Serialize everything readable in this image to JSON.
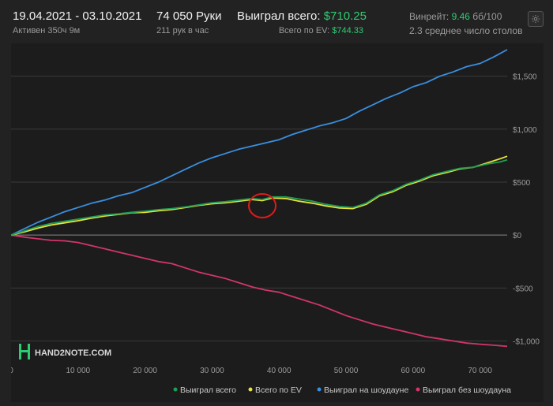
{
  "header": {
    "date_range": "19.04.2021 - 03.10.2021",
    "active": "Активен 350ч 9м",
    "hands": "74 050 Руки",
    "hands_rate": "211 рук в час",
    "won_label": "Выиграл всего:",
    "won_value": "$710.25",
    "ev_label": "Всего по EV:",
    "ev_value": "$744.33",
    "winrate_label": "Винрейт:",
    "winrate_value": "9.46",
    "winrate_unit": "бб/100",
    "tables": "2.3 среднее число столов"
  },
  "logo_text": "HAND2NOTE.COM",
  "colors": {
    "won": "#1f9e57",
    "ev": "#e8e33a",
    "showdown": "#3a8fe0",
    "non_showdown": "#d1356b",
    "accent_green": "#2ecc71"
  },
  "chart_data": {
    "type": "line",
    "x_ticks": [
      0,
      10000,
      20000,
      30000,
      40000,
      50000,
      60000,
      70000
    ],
    "x_tick_labels": [
      "0",
      "10 000",
      "20 000",
      "30 000",
      "40 000",
      "50 000",
      "60 000",
      "70 000"
    ],
    "y_ticks": [
      -1000,
      -500,
      0,
      500,
      1000,
      1500
    ],
    "y_tick_labels": [
      "-$1,000",
      "-$500",
      "$0",
      "$500",
      "$1,000",
      "$1,500"
    ],
    "xlim": [
      0,
      74050
    ],
    "ylim": [
      -1130,
      1750
    ],
    "grid": true,
    "legend_position": "bottom-right",
    "annotation": "red circle around the won/EV lines near x≈37 500",
    "series": [
      {
        "name": "Выиграл всего",
        "color_key": "won",
        "x": [
          0,
          2000,
          4000,
          6000,
          8000,
          10000,
          12000,
          14000,
          16000,
          18000,
          20000,
          22000,
          24000,
          26000,
          28000,
          30000,
          32000,
          34000,
          36000,
          37500,
          39000,
          41000,
          43000,
          45000,
          47000,
          49000,
          51000,
          53000,
          55000,
          57000,
          59000,
          61000,
          63000,
          65000,
          67000,
          69000,
          71000,
          73000,
          74050
        ],
        "values": [
          0,
          40,
          80,
          110,
          130,
          150,
          170,
          190,
          200,
          215,
          225,
          240,
          250,
          265,
          285,
          305,
          315,
          330,
          345,
          335,
          360,
          360,
          340,
          320,
          290,
          270,
          260,
          300,
          380,
          420,
          480,
          520,
          570,
          600,
          630,
          640,
          670,
          690,
          710
        ]
      },
      {
        "name": "Всего по EV",
        "color_key": "ev",
        "x": [
          0,
          2000,
          4000,
          6000,
          8000,
          10000,
          12000,
          14000,
          16000,
          18000,
          20000,
          22000,
          24000,
          26000,
          28000,
          30000,
          32000,
          34000,
          36000,
          37500,
          39000,
          41000,
          43000,
          45000,
          47000,
          49000,
          51000,
          53000,
          55000,
          57000,
          59000,
          61000,
          63000,
          65000,
          67000,
          69000,
          71000,
          73000,
          74050
        ],
        "values": [
          0,
          30,
          65,
          95,
          115,
          135,
          160,
          180,
          195,
          210,
          215,
          230,
          240,
          260,
          280,
          295,
          305,
          320,
          335,
          325,
          350,
          345,
          320,
          300,
          275,
          255,
          250,
          290,
          370,
          410,
          470,
          510,
          560,
          590,
          625,
          640,
          680,
          720,
          744
        ]
      },
      {
        "name": "Выиграл на шоудауне",
        "color_key": "showdown",
        "x": [
          0,
          2000,
          4000,
          6000,
          8000,
          10000,
          12000,
          14000,
          16000,
          18000,
          20000,
          22000,
          24000,
          26000,
          28000,
          30000,
          32000,
          34000,
          36000,
          38000,
          40000,
          42000,
          44000,
          46000,
          48000,
          50000,
          52000,
          54000,
          56000,
          58000,
          60000,
          62000,
          64000,
          66000,
          68000,
          70000,
          72000,
          74050
        ],
        "values": [
          0,
          60,
          120,
          170,
          220,
          260,
          300,
          330,
          370,
          400,
          450,
          500,
          560,
          620,
          680,
          730,
          770,
          810,
          840,
          870,
          900,
          950,
          990,
          1030,
          1060,
          1100,
          1170,
          1230,
          1290,
          1340,
          1400,
          1440,
          1500,
          1540,
          1590,
          1620,
          1680,
          1750
        ]
      },
      {
        "name": "Выиграл без шоудауна",
        "color_key": "non_showdown",
        "x": [
          0,
          2000,
          4000,
          6000,
          8000,
          10000,
          12000,
          14000,
          16000,
          18000,
          20000,
          22000,
          24000,
          26000,
          28000,
          30000,
          32000,
          34000,
          36000,
          38000,
          40000,
          42000,
          44000,
          46000,
          48000,
          50000,
          52000,
          54000,
          56000,
          58000,
          60000,
          62000,
          64000,
          66000,
          68000,
          70000,
          72000,
          74050
        ],
        "values": [
          0,
          -20,
          -35,
          -50,
          -55,
          -70,
          -100,
          -130,
          -160,
          -190,
          -220,
          -250,
          -270,
          -310,
          -350,
          -380,
          -410,
          -450,
          -490,
          -520,
          -540,
          -580,
          -620,
          -660,
          -710,
          -760,
          -800,
          -840,
          -870,
          -900,
          -930,
          -960,
          -980,
          -1000,
          -1020,
          -1030,
          -1040,
          -1050
        ]
      }
    ]
  }
}
